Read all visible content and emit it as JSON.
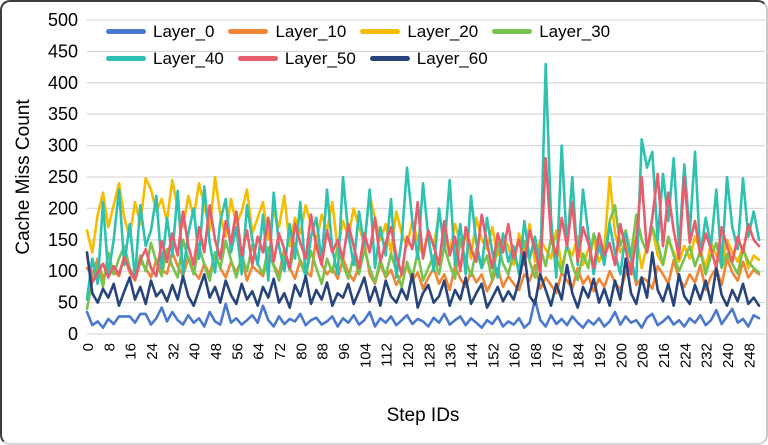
{
  "colors": {
    "grid": "#d9d9d9",
    "text": "#000000",
    "background": "#ffffff"
  },
  "chart_data": {
    "type": "line",
    "title": "",
    "xlabel": "Step IDs",
    "ylabel": "Cache Miss Count",
    "x_start": 0,
    "x_step": 2,
    "x_max": 252,
    "ylim": [
      0,
      500
    ],
    "grid": true,
    "legend_position": "top",
    "legend_rows": [
      [
        0,
        1,
        2,
        3
      ],
      [
        4,
        5,
        6
      ]
    ],
    "ytick_labels": [
      0,
      50,
      100,
      150,
      200,
      250,
      300,
      350,
      400,
      450,
      500
    ],
    "xtick_labels": [
      0,
      8,
      16,
      24,
      32,
      40,
      48,
      56,
      64,
      72,
      80,
      88,
      96,
      104,
      112,
      120,
      128,
      136,
      144,
      152,
      160,
      168,
      176,
      184,
      192,
      200,
      208,
      216,
      224,
      232,
      240,
      248
    ],
    "series": [
      {
        "name": "Layer_0",
        "color": "#4A79CE",
        "values": [
          35,
          14,
          20,
          10,
          24,
          16,
          28,
          28,
          28,
          18,
          32,
          32,
          15,
          25,
          42,
          20,
          35,
          22,
          15,
          30,
          18,
          25,
          12,
          35,
          20,
          15,
          48,
          18,
          25,
          15,
          22,
          30,
          18,
          45,
          22,
          12,
          28,
          16,
          24,
          20,
          32,
          14,
          22,
          26,
          15,
          20,
          28,
          12,
          25,
          18,
          30,
          15,
          22,
          35,
          12,
          25,
          18,
          28,
          14,
          22,
          30,
          16,
          24,
          20,
          12,
          26,
          18,
          32,
          15,
          22,
          28,
          14,
          25,
          18,
          10,
          22,
          16,
          28,
          12,
          20,
          15,
          25,
          10,
          18,
          55,
          22,
          12,
          30,
          16,
          24,
          14,
          28,
          18,
          10,
          22,
          15,
          25,
          12,
          20,
          35,
          15,
          28,
          18,
          22,
          10,
          26,
          32,
          14,
          20,
          28,
          15,
          22,
          12,
          25,
          18,
          30,
          14,
          22,
          38,
          16,
          28,
          40,
          18,
          24,
          12,
          30,
          25
        ]
      },
      {
        "name": "Layer_10",
        "color": "#F08636",
        "values": [
          105,
          95,
          120,
          88,
          110,
          100,
          92,
          125,
          98,
          85,
          115,
          105,
          90,
          118,
          102,
          96,
          130,
          108,
          92,
          122,
          100,
          88,
          112,
          95,
          128,
          105,
          90,
          115,
          98,
          120,
          85,
          108,
          100,
          92,
          125,
          110,
          95,
          135,
          105,
          88,
          118,
          100,
          92,
          155,
          110,
          95,
          105,
          88,
          120,
          98,
          85,
          108,
          145,
          95,
          80,
          112,
          90,
          102,
          78,
          95,
          110,
          85,
          98,
          72,
          90,
          105,
          80,
          95,
          70,
          108,
          88,
          75,
          100,
          82,
          95,
          68,
          85,
          105,
          75,
          92,
          80,
          70,
          95,
          85,
          110,
          72,
          90,
          78,
          65,
          98,
          85,
          72,
          105,
          80,
          92,
          68,
          88,
          75,
          100,
          82,
          70,
          95,
          115,
          78,
          90,
          85,
          72,
          108,
          95,
          80,
          118,
          88,
          75,
          95,
          82,
          110,
          70,
          92,
          105,
          78,
          120,
          98,
          85,
          115,
          90,
          102,
          95
        ]
      },
      {
        "name": "Layer_20",
        "color": "#F7BB00",
        "values": [
          165,
          130,
          190,
          225,
          170,
          205,
          240,
          185,
          155,
          210,
          175,
          248,
          230,
          195,
          215,
          180,
          245,
          200,
          170,
          220,
          185,
          240,
          205,
          165,
          250,
          190,
          155,
          215,
          175,
          195,
          230,
          160,
          185,
          210,
          150,
          195,
          170,
          220,
          140,
          185,
          160,
          205,
          175,
          145,
          190,
          165,
          210,
          135,
          180,
          155,
          200,
          170,
          145,
          220,
          185,
          150,
          175,
          130,
          195,
          160,
          140,
          180,
          150,
          125,
          165,
          140,
          190,
          155,
          130,
          175,
          145,
          160,
          120,
          185,
          150,
          135,
          170,
          125,
          155,
          140,
          110,
          160,
          130,
          175,
          115,
          150,
          135,
          120,
          165,
          105,
          140,
          125,
          155,
          110,
          135,
          150,
          115,
          135,
          250,
          160,
          130,
          145,
          120,
          155,
          105,
          140,
          170,
          125,
          110,
          150,
          130,
          115,
          140,
          120,
          155,
          135,
          105,
          145,
          125,
          110,
          150,
          130,
          115,
          140,
          105,
          125,
          118
        ]
      },
      {
        "name": "Layer_30",
        "color": "#78C24E",
        "values": [
          40,
          85,
          110,
          75,
          130,
          95,
          120,
          140,
          105,
          88,
          125,
          100,
          145,
          115,
          92,
          135,
          108,
          90,
          150,
          120,
          95,
          140,
          110,
          85,
          130,
          105,
          148,
          118,
          90,
          125,
          100,
          142,
          112,
          95,
          138,
          108,
          85,
          128,
          102,
          145,
          115,
          92,
          132,
          105,
          80,
          120,
          98,
          140,
          110,
          88,
          125,
          95,
          135,
          105,
          82,
          118,
          92,
          128,
          100,
          75,
          115,
          90,
          130,
          85,
          105,
          125,
          95,
          140,
          110,
          88,
          150,
          118,
          92,
          135,
          105,
          125,
          85,
          145,
          112,
          95,
          130,
          100,
          148,
          115,
          90,
          138,
          108,
          152,
          122,
          98,
          142,
          110,
          86,
          128,
          105,
          160,
          135,
          115,
          180,
          205,
          140,
          165,
          125,
          190,
          150,
          130,
          170,
          145,
          110,
          155,
          125,
          100,
          120,
          140,
          108,
          132,
          95,
          125,
          145,
          105,
          128,
          112,
          96,
          135,
          115,
          105,
          98
        ]
      },
      {
        "name": "Layer_40",
        "color": "#2EC1B1",
        "values": [
          55,
          120,
          80,
          210,
          95,
          150,
          230,
          110,
          175,
          90,
          205,
          140,
          165,
          220,
          105,
          185,
          125,
          228,
          95,
          160,
          200,
          120,
          235,
          145,
          98,
          180,
          215,
          130,
          170,
          95,
          205,
          150,
          110,
          190,
          85,
          225,
          140,
          100,
          175,
          120,
          210,
          90,
          155,
          185,
          115,
          230,
          135,
          95,
          250,
          160,
          110,
          195,
          140,
          230,
          105,
          170,
          125,
          215,
          90,
          150,
          265,
          180,
          120,
          240,
          155,
          100,
          200,
          135,
          245,
          110,
          175,
          95,
          220,
          145,
          105,
          185,
          130,
          90,
          160,
          115,
          140,
          95,
          180,
          120,
          155,
          105,
          430,
          185,
          90,
          300,
          135,
          250,
          110,
          230,
          160,
          95,
          145,
          110,
          175,
          130,
          95,
          160,
          120,
          85,
          310,
          265,
          290,
          150,
          255,
          180,
          280,
          135,
          270,
          160,
          290,
          125,
          185,
          140,
          230,
          108,
          250,
          170,
          135,
          248,
          155,
          195,
          150
        ]
      },
      {
        "name": "Layer_50",
        "color": "#E85C6C",
        "values": [
          125,
          82,
          98,
          112,
          90,
          108,
          95,
          122,
          102,
          88,
          118,
          135,
          105,
          92,
          148,
          115,
          160,
          125,
          195,
          140,
          110,
          170,
          130,
          205,
          150,
          120,
          180,
          145,
          195,
          125,
          165,
          110,
          155,
          130,
          185,
          115,
          160,
          135,
          105,
          175,
          145,
          120,
          190,
          140,
          110,
          165,
          130,
          150,
          120,
          175,
          140,
          105,
          160,
          130,
          185,
          115,
          145,
          170,
          125,
          95,
          155,
          135,
          210,
          120,
          165,
          140,
          110,
          180,
          125,
          155,
          100,
          170,
          135,
          115,
          190,
          145,
          105,
          160,
          130,
          175,
          120,
          150,
          110,
          165,
          135,
          95,
          280,
          155,
          125,
          185,
          140,
          210,
          115,
          170,
          145,
          105,
          160,
          125,
          145,
          110,
          175,
          135,
          95,
          150,
          250,
          130,
          185,
          255,
          140,
          225,
          165,
          120,
          250,
          145,
          180,
          125,
          160,
          135,
          105,
          170,
          140,
          115,
          155,
          130,
          175,
          150,
          140
        ]
      },
      {
        "name": "Layer_60",
        "color": "#27447C",
        "values": [
          130,
          65,
          50,
          72,
          58,
          80,
          45,
          68,
          90,
          55,
          75,
          48,
          85,
          60,
          70,
          52,
          78,
          55,
          92,
          60,
          45,
          70,
          95,
          58,
          75,
          50,
          85,
          62,
          48,
          80,
          55,
          68,
          45,
          75,
          58,
          88,
          50,
          65,
          42,
          78,
          60,
          92,
          48,
          70,
          55,
          82,
          45,
          65,
          58,
          80,
          48,
          68,
          90,
          52,
          75,
          45,
          85,
          60,
          50,
          72,
          55,
          95,
          42,
          65,
          78,
          50,
          60,
          85,
          45,
          70,
          55,
          90,
          48,
          65,
          80,
          42,
          58,
          75,
          52,
          68,
          55,
          85,
          130,
          60,
          48,
          95,
          70,
          45,
          80,
          55,
          110,
          65,
          42,
          75,
          58,
          88,
          50,
          72,
          45,
          85,
          55,
          120,
          65,
          48,
          90,
          58,
          130,
          70,
          52,
          80,
          45,
          95,
          60,
          48,
          78,
          55,
          85,
          50,
          105,
          62,
          45,
          70,
          52,
          80,
          48,
          58,
          45
        ]
      }
    ]
  }
}
